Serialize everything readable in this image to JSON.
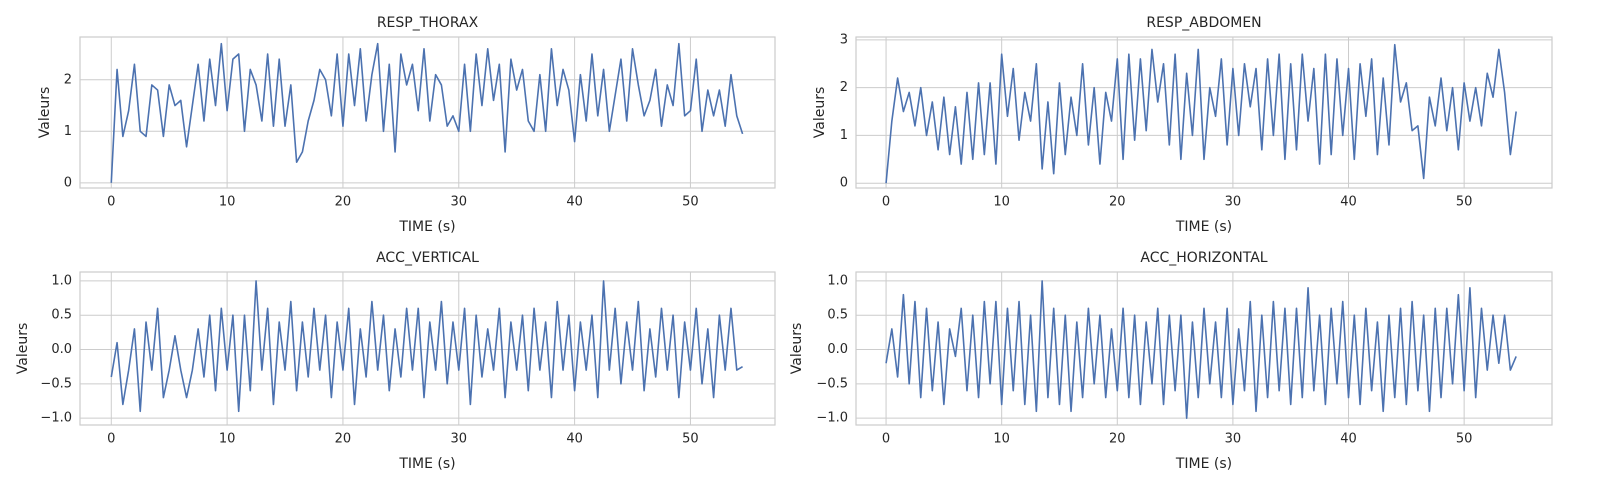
{
  "chart_data": [
    {
      "type": "line",
      "title": "RESP_THORAX",
      "xlabel": "TIME (s)",
      "ylabel": "Valeurs",
      "grid": true,
      "xlim": [
        -2.7,
        57.3
      ],
      "ylim": [
        -0.1,
        2.83
      ],
      "xticks": [
        0,
        10,
        20,
        30,
        40,
        50
      ],
      "yticks": [
        0,
        1,
        2
      ],
      "x": [
        0,
        0.5,
        1,
        1.5,
        2,
        2.5,
        3,
        3.5,
        4,
        4.5,
        5,
        5.5,
        6,
        6.5,
        7,
        7.5,
        8,
        8.5,
        9,
        9.5,
        10,
        10.5,
        11,
        11.5,
        12,
        12.5,
        13,
        13.5,
        14,
        14.5,
        15,
        15.5,
        16,
        16.5,
        17,
        17.5,
        18,
        18.5,
        19,
        19.5,
        20,
        20.5,
        21,
        21.5,
        22,
        22.5,
        23,
        23.5,
        24,
        24.5,
        25,
        25.5,
        26,
        26.5,
        27,
        27.5,
        28,
        28.5,
        29,
        29.5,
        30,
        30.5,
        31,
        31.5,
        32,
        32.5,
        33,
        33.5,
        34,
        34.5,
        35,
        35.5,
        36,
        36.5,
        37,
        37.5,
        38,
        38.5,
        39,
        39.5,
        40,
        40.5,
        41,
        41.5,
        42,
        42.5,
        43,
        43.5,
        44,
        44.5,
        45,
        45.5,
        46,
        46.5,
        47,
        47.5,
        48,
        48.5,
        49,
        49.5,
        50,
        50.5,
        51,
        51.5,
        52,
        52.5,
        53,
        53.5,
        54,
        54.5
      ],
      "series": [
        {
          "color": "#4c72b0",
          "values": [
            0,
            2.2,
            0.9,
            1.4,
            2.3,
            1.0,
            0.9,
            1.9,
            1.8,
            0.9,
            1.9,
            1.5,
            1.6,
            0.7,
            1.5,
            2.3,
            1.2,
            2.4,
            1.5,
            2.7,
            1.4,
            2.4,
            2.5,
            1.0,
            2.2,
            1.9,
            1.2,
            2.5,
            1.1,
            2.4,
            1.1,
            1.9,
            0.4,
            0.6,
            1.2,
            1.6,
            2.2,
            2.0,
            1.3,
            2.5,
            1.1,
            2.5,
            1.5,
            2.6,
            1.2,
            2.1,
            2.7,
            1.0,
            2.3,
            0.6,
            2.5,
            1.9,
            2.3,
            1.4,
            2.6,
            1.2,
            2.1,
            1.9,
            1.1,
            1.3,
            1.0,
            2.3,
            1.0,
            2.5,
            1.5,
            2.6,
            1.6,
            2.3,
            0.6,
            2.4,
            1.8,
            2.2,
            1.2,
            1.0,
            2.1,
            1.0,
            2.6,
            1.5,
            2.2,
            1.8,
            0.8,
            2.1,
            1.2,
            2.5,
            1.3,
            2.2,
            1.0,
            1.7,
            2.4,
            1.2,
            2.6,
            1.9,
            1.3,
            1.6,
            2.2,
            1.1,
            1.9,
            1.5,
            2.7,
            1.3,
            1.4,
            2.4,
            1.0,
            1.8,
            1.3,
            1.8,
            1.1,
            2.1,
            1.3,
            0.95
          ]
        }
      ]
    },
    {
      "type": "line",
      "title": "RESP_ABDOMEN",
      "xlabel": "TIME (s)",
      "ylabel": "Valeurs",
      "grid": true,
      "xlim": [
        -2.6,
        57.6
      ],
      "ylim": [
        -0.1,
        3.06
      ],
      "xticks": [
        0,
        10,
        20,
        30,
        40,
        50
      ],
      "yticks": [
        0,
        1,
        2,
        3
      ],
      "x": [
        0,
        0.5,
        1,
        1.5,
        2,
        2.5,
        3,
        3.5,
        4,
        4.5,
        5,
        5.5,
        6,
        6.5,
        7,
        7.5,
        8,
        8.5,
        9,
        9.5,
        10,
        10.5,
        11,
        11.5,
        12,
        12.5,
        13,
        13.5,
        14,
        14.5,
        15,
        15.5,
        16,
        16.5,
        17,
        17.5,
        18,
        18.5,
        19,
        19.5,
        20,
        20.5,
        21,
        21.5,
        22,
        22.5,
        23,
        23.5,
        24,
        24.5,
        25,
        25.5,
        26,
        26.5,
        27,
        27.5,
        28,
        28.5,
        29,
        29.5,
        30,
        30.5,
        31,
        31.5,
        32,
        32.5,
        33,
        33.5,
        34,
        34.5,
        35,
        35.5,
        36,
        36.5,
        37,
        37.5,
        38,
        38.5,
        39,
        39.5,
        40,
        40.5,
        41,
        41.5,
        42,
        42.5,
        43,
        43.5,
        44,
        44.5,
        45,
        45.5,
        46,
        46.5,
        47,
        47.5,
        48,
        48.5,
        49,
        49.5,
        50,
        50.5,
        51,
        51.5,
        52,
        52.5,
        53,
        53.5,
        54,
        54.5
      ],
      "series": [
        {
          "color": "#4c72b0",
          "values": [
            0,
            1.3,
            2.2,
            1.5,
            1.9,
            1.2,
            2.0,
            1.0,
            1.7,
            0.7,
            1.8,
            0.6,
            1.6,
            0.4,
            1.9,
            0.5,
            2.1,
            0.6,
            2.1,
            0.4,
            2.7,
            1.4,
            2.4,
            0.9,
            1.9,
            1.3,
            2.5,
            0.3,
            1.7,
            0.2,
            2.1,
            0.6,
            1.8,
            1.0,
            2.5,
            0.8,
            2.0,
            0.4,
            1.9,
            1.3,
            2.6,
            0.5,
            2.7,
            0.9,
            2.6,
            1.1,
            2.8,
            1.7,
            2.5,
            0.8,
            2.7,
            0.5,
            2.3,
            1.0,
            2.8,
            0.5,
            2.0,
            1.4,
            2.6,
            0.8,
            2.4,
            1.0,
            2.5,
            1.6,
            2.4,
            0.7,
            2.6,
            1.0,
            2.7,
            0.5,
            2.5,
            0.7,
            2.7,
            1.3,
            2.4,
            0.4,
            2.7,
            0.6,
            2.6,
            1.0,
            2.4,
            0.5,
            2.5,
            1.4,
            2.6,
            0.6,
            2.2,
            0.8,
            2.9,
            1.7,
            2.1,
            1.1,
            1.2,
            0.1,
            1.8,
            1.2,
            2.2,
            1.1,
            2.0,
            0.7,
            2.1,
            1.3,
            2.0,
            1.2,
            2.3,
            1.8,
            2.8,
            1.9,
            0.6,
            1.5
          ]
        }
      ]
    },
    {
      "type": "line",
      "title": "ACC_VERTICAL",
      "xlabel": "TIME (s)",
      "ylabel": "Valeurs",
      "grid": true,
      "xlim": [
        -2.7,
        57.3
      ],
      "ylim": [
        -1.1,
        1.13
      ],
      "xticks": [
        0,
        10,
        20,
        30,
        40,
        50
      ],
      "yticks": [
        {
          "value": -1,
          "label": "−1.0"
        },
        {
          "value": -0.5,
          "label": "−0.5"
        },
        {
          "value": 0,
          "label": "0.0"
        },
        0.5,
        {
          "value": 1,
          "label": "1.0"
        }
      ],
      "x": [
        0,
        0.5,
        1,
        1.5,
        2,
        2.5,
        3,
        3.5,
        4,
        4.5,
        5,
        5.5,
        6,
        6.5,
        7,
        7.5,
        8,
        8.5,
        9,
        9.5,
        10,
        10.5,
        11,
        11.5,
        12,
        12.5,
        13,
        13.5,
        14,
        14.5,
        15,
        15.5,
        16,
        16.5,
        17,
        17.5,
        18,
        18.5,
        19,
        19.5,
        20,
        20.5,
        21,
        21.5,
        22,
        22.5,
        23,
        23.5,
        24,
        24.5,
        25,
        25.5,
        26,
        26.5,
        27,
        27.5,
        28,
        28.5,
        29,
        29.5,
        30,
        30.5,
        31,
        31.5,
        32,
        32.5,
        33,
        33.5,
        34,
        34.5,
        35,
        35.5,
        36,
        36.5,
        37,
        37.5,
        38,
        38.5,
        39,
        39.5,
        40,
        40.5,
        41,
        41.5,
        42,
        42.5,
        43,
        43.5,
        44,
        44.5,
        45,
        45.5,
        46,
        46.5,
        47,
        47.5,
        48,
        48.5,
        49,
        49.5,
        50,
        50.5,
        51,
        51.5,
        52,
        52.5,
        53,
        53.5,
        54,
        54.5
      ],
      "series": [
        {
          "color": "#4c72b0",
          "values": [
            -0.4,
            0.1,
            -0.8,
            -0.3,
            0.3,
            -0.9,
            0.4,
            -0.3,
            0.6,
            -0.7,
            -0.3,
            0.2,
            -0.3,
            -0.7,
            -0.3,
            0.3,
            -0.4,
            0.5,
            -0.6,
            0.6,
            -0.3,
            0.5,
            -0.9,
            0.5,
            -0.6,
            1.0,
            -0.3,
            0.6,
            -0.8,
            0.4,
            -0.3,
            0.7,
            -0.6,
            0.4,
            -0.4,
            0.6,
            -0.3,
            0.5,
            -0.7,
            0.4,
            -0.3,
            0.6,
            -0.8,
            0.3,
            -0.4,
            0.7,
            -0.3,
            0.5,
            -0.6,
            0.3,
            -0.4,
            0.6,
            -0.3,
            0.6,
            -0.7,
            0.4,
            -0.3,
            0.7,
            -0.5,
            0.4,
            -0.3,
            0.6,
            -0.8,
            0.5,
            -0.4,
            0.3,
            -0.3,
            0.6,
            -0.7,
            0.4,
            -0.3,
            0.5,
            -0.6,
            0.6,
            -0.3,
            0.4,
            -0.7,
            0.7,
            -0.3,
            0.5,
            -0.6,
            0.4,
            -0.3,
            0.5,
            -0.7,
            1.0,
            -0.3,
            0.6,
            -0.5,
            0.4,
            -0.3,
            0.7,
            -0.6,
            0.3,
            -0.4,
            0.6,
            -0.3,
            0.5,
            -0.7,
            0.4,
            -0.3,
            0.6,
            -0.5,
            0.3,
            -0.7,
            0.5,
            -0.3,
            0.6,
            -0.3,
            -0.25
          ]
        }
      ]
    },
    {
      "type": "line",
      "title": "ACC_HORIZONTAL",
      "xlabel": "TIME (s)",
      "ylabel": "Valeurs",
      "grid": true,
      "xlim": [
        -2.6,
        57.6
      ],
      "ylim": [
        -1.1,
        1.13
      ],
      "xticks": [
        0,
        10,
        20,
        30,
        40,
        50
      ],
      "yticks": [
        {
          "value": -1,
          "label": "−1.0"
        },
        {
          "value": -0.5,
          "label": "−0.5"
        },
        {
          "value": 0,
          "label": "0.0"
        },
        0.5,
        {
          "value": 1,
          "label": "1.0"
        }
      ],
      "x": [
        0,
        0.5,
        1,
        1.5,
        2,
        2.5,
        3,
        3.5,
        4,
        4.5,
        5,
        5.5,
        6,
        6.5,
        7,
        7.5,
        8,
        8.5,
        9,
        9.5,
        10,
        10.5,
        11,
        11.5,
        12,
        12.5,
        13,
        13.5,
        14,
        14.5,
        15,
        15.5,
        16,
        16.5,
        17,
        17.5,
        18,
        18.5,
        19,
        19.5,
        20,
        20.5,
        21,
        21.5,
        22,
        22.5,
        23,
        23.5,
        24,
        24.5,
        25,
        25.5,
        26,
        26.5,
        27,
        27.5,
        28,
        28.5,
        29,
        29.5,
        30,
        30.5,
        31,
        31.5,
        32,
        32.5,
        33,
        33.5,
        34,
        34.5,
        35,
        35.5,
        36,
        36.5,
        37,
        37.5,
        38,
        38.5,
        39,
        39.5,
        40,
        40.5,
        41,
        41.5,
        42,
        42.5,
        43,
        43.5,
        44,
        44.5,
        45,
        45.5,
        46,
        46.5,
        47,
        47.5,
        48,
        48.5,
        49,
        49.5,
        50,
        50.5,
        51,
        51.5,
        52,
        52.5,
        53,
        53.5,
        54,
        54.5
      ],
      "series": [
        {
          "color": "#4c72b0",
          "values": [
            -0.2,
            0.3,
            -0.4,
            0.8,
            -0.5,
            0.7,
            -0.7,
            0.6,
            -0.6,
            0.4,
            -0.8,
            0.3,
            -0.1,
            0.6,
            -0.6,
            0.5,
            -0.7,
            0.7,
            -0.5,
            0.7,
            -0.8,
            0.6,
            -0.6,
            0.7,
            -0.8,
            0.5,
            -0.9,
            1.0,
            -0.7,
            0.6,
            -0.8,
            0.5,
            -0.9,
            0.4,
            -0.7,
            0.6,
            -0.5,
            0.5,
            -0.7,
            0.3,
            -0.6,
            0.6,
            -0.7,
            0.5,
            -0.8,
            0.4,
            -0.5,
            0.6,
            -0.8,
            0.5,
            -0.6,
            0.5,
            -1.0,
            0.4,
            -0.7,
            0.6,
            -0.5,
            0.4,
            -0.7,
            0.6,
            -0.8,
            0.3,
            -0.6,
            0.7,
            -0.9,
            0.5,
            -0.7,
            0.7,
            -0.6,
            0.6,
            -0.8,
            0.6,
            -0.7,
            0.9,
            -0.6,
            0.5,
            -0.8,
            0.6,
            -0.5,
            0.7,
            -0.7,
            0.5,
            -0.8,
            0.6,
            -0.6,
            0.4,
            -0.9,
            0.5,
            -0.7,
            0.6,
            -0.8,
            0.7,
            -0.6,
            0.5,
            -0.9,
            0.6,
            -0.7,
            0.6,
            -0.5,
            0.8,
            -0.6,
            0.9,
            -0.7,
            0.6,
            -0.3,
            0.5,
            -0.2,
            0.5,
            -0.3,
            -0.1
          ]
        }
      ]
    }
  ]
}
